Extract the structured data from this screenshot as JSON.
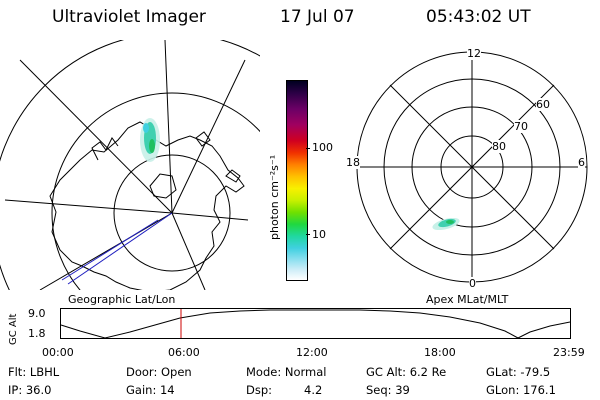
{
  "header": {
    "instrument": "Ultraviolet Imager",
    "date": "17 Jul 07",
    "time": "05:43:02 UT"
  },
  "panels": {
    "left_label": "Geographic Lat/Lon",
    "right_label": "Apex MLat/MLT"
  },
  "colorbar": {
    "unit_label": "photon cm⁻²s⁻¹",
    "ticks": [
      "100",
      "10"
    ],
    "colors": [
      "#000020",
      "#2b0045",
      "#6b0066",
      "#a00060",
      "#d00020",
      "#f03000",
      "#ff8000",
      "#ffc000",
      "#f8f000",
      "#c8f000",
      "#70e000",
      "#20d840",
      "#20d8a0",
      "#40d0e0",
      "#90e0f0",
      "#d0eef8",
      "#ffffff"
    ]
  },
  "polar_grid": {
    "mlt_labels": {
      "top": "12",
      "left": "18",
      "right": "6",
      "bottom": "0"
    },
    "lat_labels": [
      "60",
      "70",
      "80"
    ]
  },
  "alt_plot": {
    "ylabel": "GC Alt",
    "y_ticks": [
      "9.0",
      "1.8"
    ],
    "x_ticks": [
      "00:00",
      "06:00",
      "12:00",
      "18:00",
      "23:59"
    ],
    "marker_time": "05:43"
  },
  "info": {
    "flt": "Flt: LBHL",
    "ip": "IP: 36.0",
    "door": "Door: Open",
    "gain": "Gain: 14",
    "mode": "Mode: Normal",
    "dsp_label": "Dsp:",
    "dsp_value": "4.2",
    "gc_alt": "GC Alt: 6.2 Re",
    "seq": "Seq: 39",
    "glat": "GLat: -79.5",
    "glon": "GLon: 176.1"
  },
  "colors": {
    "marker": "#cc0000",
    "track": "#2020c0"
  }
}
